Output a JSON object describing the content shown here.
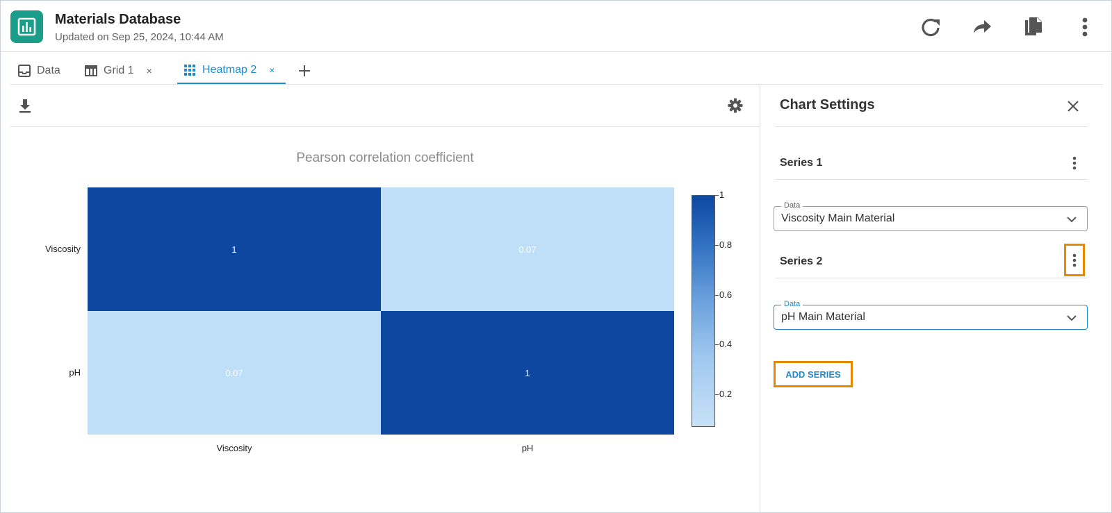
{
  "header": {
    "title": "Materials Database",
    "subtitle": "Updated on Sep 25, 2024, 10:44 AM",
    "icons": [
      "refresh-icon",
      "share-icon",
      "copy-icon",
      "more-vert-icon"
    ]
  },
  "tabs": [
    {
      "label": "Data",
      "icon": "inbox-icon",
      "closable": false
    },
    {
      "label": "Grid 1",
      "icon": "table-icon",
      "closable": true
    },
    {
      "label": "Heatmap 2",
      "icon": "heatmap-icon",
      "closable": true,
      "active": true
    }
  ],
  "tab_close_glyph": "×",
  "chart_data": {
    "type": "heatmap",
    "title": "Pearson correlation coefficient",
    "x_categories": [
      "Viscosity",
      "pH"
    ],
    "y_categories": [
      "Viscosity",
      "pH"
    ],
    "values": [
      [
        1,
        0.07
      ],
      [
        0.07,
        1
      ]
    ],
    "value_labels": [
      [
        "1",
        "0.07"
      ],
      [
        "0.07",
        "1"
      ]
    ],
    "colorbar": {
      "ticks": [
        "1",
        "0.8",
        "0.6",
        "0.4",
        "0.2"
      ],
      "min": 0.07,
      "max": 1
    },
    "colors": {
      "high": "#0e47a0",
      "low": "#bfdef8"
    }
  },
  "settings": {
    "title": "Chart Settings",
    "series": [
      {
        "label": "Series 1",
        "data_label": "Data",
        "data_value": "Viscosity Main Material"
      },
      {
        "label": "Series 2",
        "data_label": "Data",
        "data_value": "pH Main Material"
      }
    ],
    "add_series_label": "ADD SERIES"
  },
  "colors": {
    "accent": "#1e88c9",
    "app_icon": "#1a9e8a",
    "highlight": "#e58a00"
  }
}
